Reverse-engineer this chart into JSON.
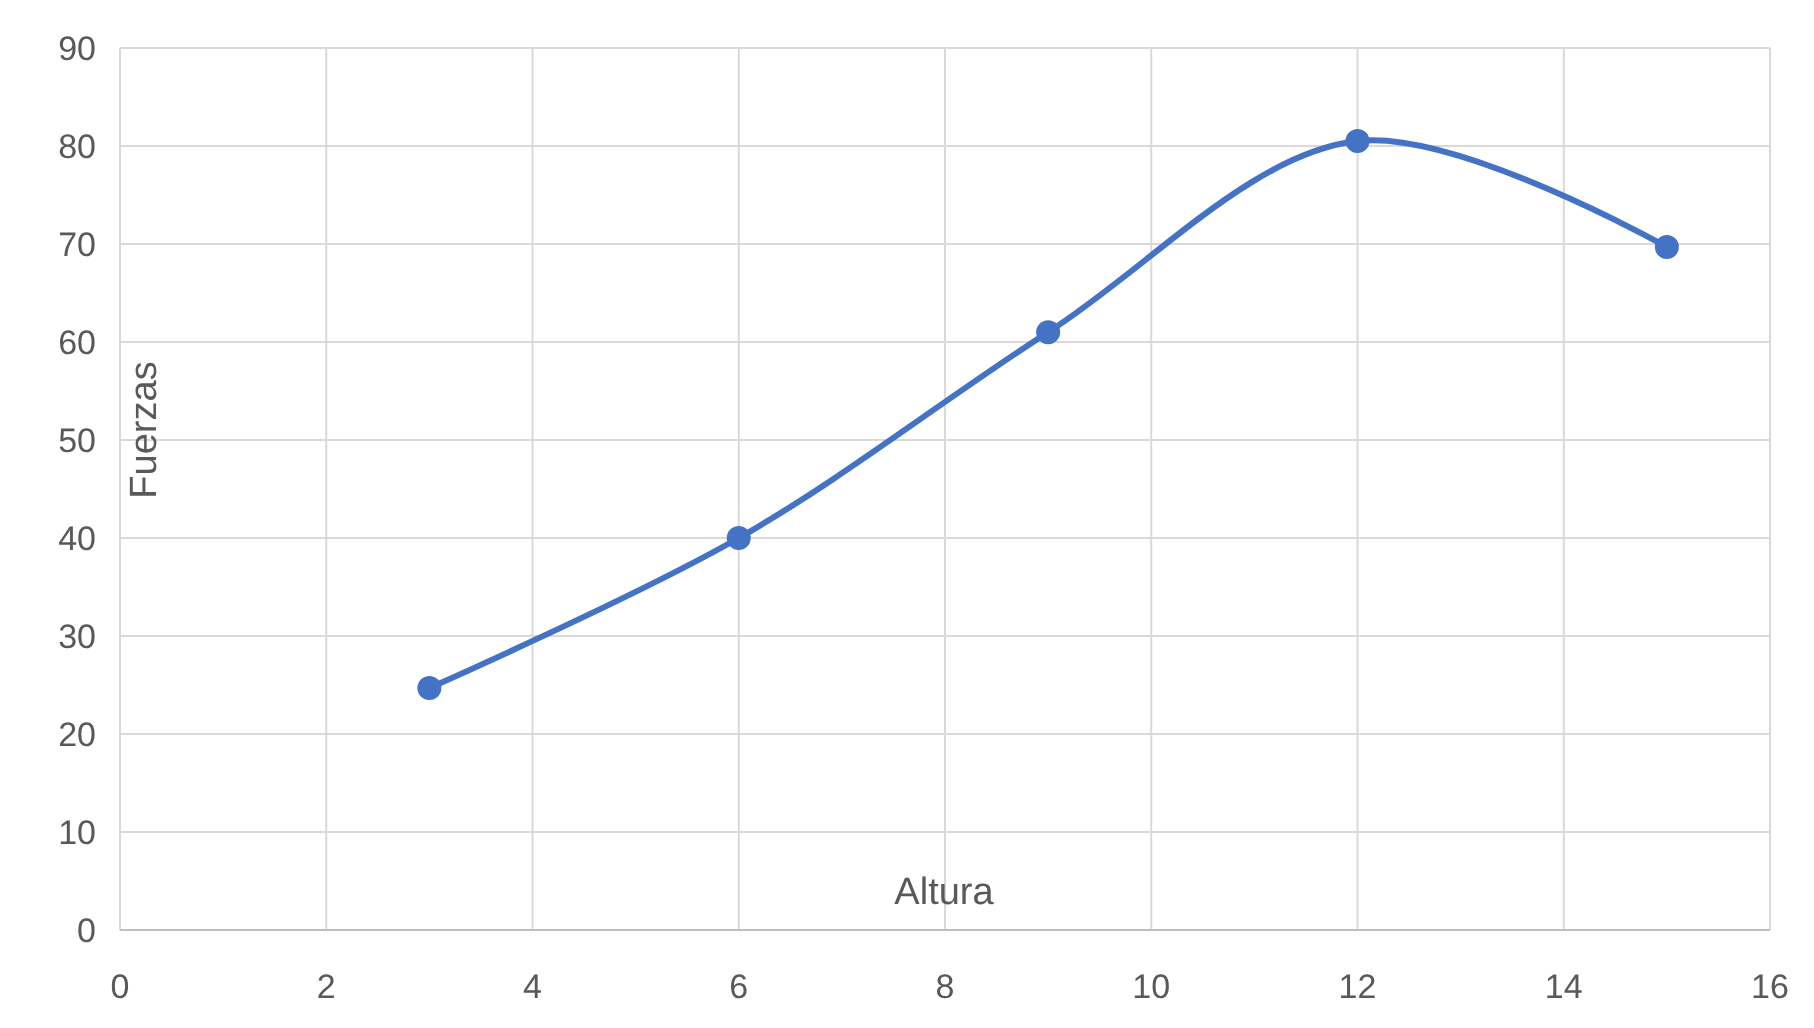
{
  "chart_data": {
    "type": "line",
    "xlabel": "Altura",
    "ylabel": "Fuerzas",
    "x": [
      3,
      6,
      9,
      12,
      15
    ],
    "series": [
      {
        "color": "#4472c4",
        "values": [
          24.7,
          40,
          61,
          80.5,
          69.7
        ]
      }
    ],
    "xlim": [
      0,
      16
    ],
    "xticks": [
      0,
      2,
      4,
      6,
      8,
      10,
      12,
      14,
      16
    ],
    "ylim": [
      0,
      90
    ],
    "yticks": [
      0,
      10,
      20,
      30,
      40,
      50,
      60,
      70,
      80,
      90
    ],
    "grid": true,
    "marker": "circle",
    "line_style": "solid"
  }
}
